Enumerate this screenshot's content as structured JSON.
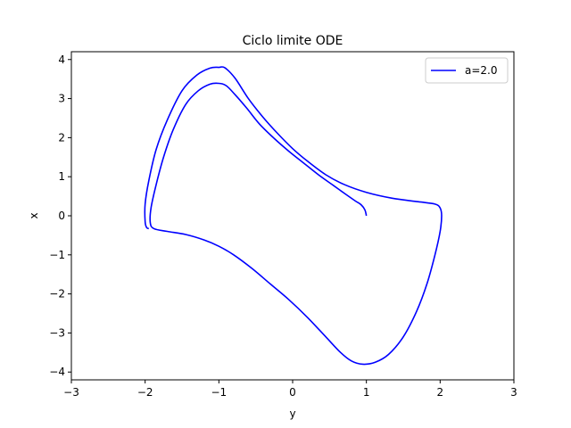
{
  "chart_data": {
    "type": "line",
    "title": "Ciclo limite ODE",
    "xlabel": "y",
    "ylabel": "x",
    "xlim": [
      -3,
      3
    ],
    "ylim": [
      -4.2,
      4.2
    ],
    "xticks": [
      -3,
      -2,
      -1,
      0,
      1,
      2,
      3
    ],
    "yticks": [
      -4,
      -3,
      -2,
      -1,
      0,
      1,
      2,
      3,
      4
    ],
    "xtick_labels": [
      "−3",
      "−2",
      "−1",
      "0",
      "1",
      "2",
      "3"
    ],
    "ytick_labels": [
      "−4",
      "−3",
      "−2",
      "−1",
      "0",
      "1",
      "2",
      "3",
      "4"
    ],
    "grid": false,
    "legend_position": "top-right",
    "series": [
      {
        "name": "a=2.0",
        "color": "#0000ff",
        "points": [
          [
            1.0,
            0.0
          ],
          [
            0.98,
            0.15
          ],
          [
            0.93,
            0.28
          ],
          [
            0.85,
            0.38
          ],
          [
            0.72,
            0.55
          ],
          [
            0.55,
            0.78
          ],
          [
            0.35,
            1.05
          ],
          [
            0.15,
            1.35
          ],
          [
            -0.05,
            1.65
          ],
          [
            -0.25,
            1.98
          ],
          [
            -0.45,
            2.35
          ],
          [
            -0.62,
            2.75
          ],
          [
            -0.78,
            3.1
          ],
          [
            -0.9,
            3.33
          ],
          [
            -1.0,
            3.39
          ],
          [
            -1.12,
            3.37
          ],
          [
            -1.28,
            3.2
          ],
          [
            -1.45,
            2.85
          ],
          [
            -1.62,
            2.2
          ],
          [
            -1.75,
            1.5
          ],
          [
            -1.85,
            0.8
          ],
          [
            -1.92,
            0.2
          ],
          [
            -1.93,
            -0.18
          ],
          [
            -1.88,
            -0.33
          ],
          [
            -1.7,
            -0.4
          ],
          [
            -1.45,
            -0.48
          ],
          [
            -1.2,
            -0.62
          ],
          [
            -1.0,
            -0.78
          ],
          [
            -0.8,
            -1.0
          ],
          [
            -0.55,
            -1.35
          ],
          [
            -0.3,
            -1.75
          ],
          [
            -0.05,
            -2.15
          ],
          [
            0.2,
            -2.6
          ],
          [
            0.45,
            -3.1
          ],
          [
            0.65,
            -3.5
          ],
          [
            0.8,
            -3.72
          ],
          [
            0.95,
            -3.8
          ],
          [
            1.12,
            -3.75
          ],
          [
            1.3,
            -3.55
          ],
          [
            1.5,
            -3.1
          ],
          [
            1.68,
            -2.45
          ],
          [
            1.82,
            -1.75
          ],
          [
            1.93,
            -1.0
          ],
          [
            2.0,
            -0.4
          ],
          [
            2.02,
            0.0
          ],
          [
            2.0,
            0.2
          ],
          [
            1.93,
            0.3
          ],
          [
            1.7,
            0.36
          ],
          [
            1.35,
            0.45
          ],
          [
            1.0,
            0.6
          ],
          [
            0.7,
            0.8
          ],
          [
            0.45,
            1.05
          ],
          [
            0.2,
            1.4
          ],
          [
            0.0,
            1.72
          ],
          [
            -0.2,
            2.1
          ],
          [
            -0.4,
            2.52
          ],
          [
            -0.6,
            3.0
          ],
          [
            -0.78,
            3.52
          ],
          [
            -0.92,
            3.79
          ],
          [
            -1.0,
            3.8
          ],
          [
            -1.12,
            3.78
          ],
          [
            -1.3,
            3.6
          ],
          [
            -1.5,
            3.2
          ],
          [
            -1.7,
            2.45
          ],
          [
            -1.85,
            1.7
          ],
          [
            -1.95,
            0.9
          ],
          [
            -2.0,
            0.3
          ],
          [
            -2.0,
            -0.15
          ],
          [
            -1.98,
            -0.3
          ],
          [
            -1.95,
            -0.33
          ]
        ]
      }
    ]
  }
}
